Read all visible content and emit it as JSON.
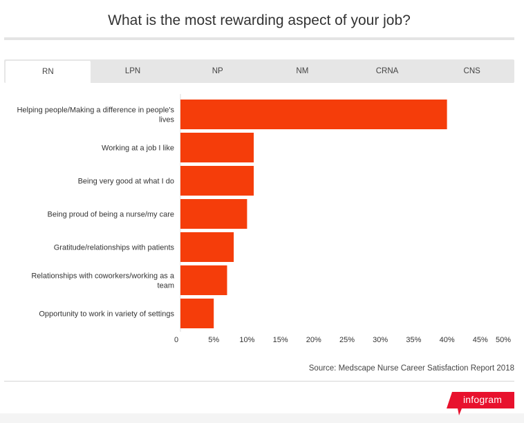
{
  "title": "What is the most rewarding aspect of your job?",
  "tabs": [
    {
      "label": "RN",
      "active": true
    },
    {
      "label": "LPN",
      "active": false
    },
    {
      "label": "NP",
      "active": false
    },
    {
      "label": "NM",
      "active": false
    },
    {
      "label": "CRNA",
      "active": false
    },
    {
      "label": "CNS",
      "active": false
    }
  ],
  "source": "Source: Medscape Nurse Career Satisfaction Report 2018",
  "brand": "infogram",
  "colors": {
    "bar": "#f53d0a",
    "brand": "#e8112d"
  },
  "chart_data": {
    "type": "bar",
    "orientation": "horizontal",
    "title": "",
    "xlabel": "",
    "ylabel": "",
    "categories": [
      [
        "Helping people/Making a difference in people's",
        "lives"
      ],
      [
        "Working at a job I like"
      ],
      [
        "Being very good at what I do"
      ],
      [
        "Being proud of being a nurse/my care"
      ],
      [
        "Gratitude/relationships with patients"
      ],
      [
        "Relationships with coworkers/working as a",
        "team"
      ],
      [
        "Opportunity to work in variety of settings"
      ]
    ],
    "values": [
      40,
      11,
      11,
      10,
      8,
      7,
      5
    ],
    "xlim": [
      0,
      50
    ],
    "ticks": [
      0,
      5,
      10,
      15,
      20,
      25,
      30,
      35,
      40,
      45,
      50
    ],
    "tick_labels": [
      "0",
      "5%",
      "10%",
      "15%",
      "20%",
      "25%",
      "30%",
      "35%",
      "40%",
      "45%",
      "50%"
    ],
    "grid": false,
    "legend": "none"
  }
}
